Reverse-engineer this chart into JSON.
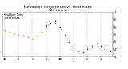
{
  "title": "Milwaukee Temperature vs. Heat Index (24 Hours)",
  "title_line1": "Milwaukee Temperature vs. Heat Index",
  "title_line2": "(24 Hours)",
  "title_fontsize": 3.2,
  "bg_color": "#ffffff",
  "grid_color": "#999999",
  "temp_color": "#cc0000",
  "heat_color": "#ff8800",
  "x_hours": [
    0,
    1,
    2,
    3,
    4,
    5,
    6,
    7,
    8,
    9,
    10,
    11,
    12,
    13,
    14,
    15,
    16,
    17,
    18,
    19,
    20,
    21,
    22,
    23
  ],
  "temp_values": [
    58,
    57,
    56,
    55,
    54,
    53,
    52,
    54,
    57,
    61,
    63,
    64,
    60,
    55,
    50,
    46,
    44,
    43,
    45,
    47,
    49,
    47,
    45,
    44
  ],
  "heat_values": [
    58,
    57,
    56,
    55,
    54,
    53,
    52,
    54,
    57,
    60,
    62,
    63,
    59,
    54,
    49,
    null,
    null,
    null,
    null,
    null,
    null,
    null,
    null,
    null
  ],
  "ylim": [
    40,
    70
  ],
  "y_ticks": [
    40,
    45,
    50,
    55,
    60,
    65,
    70
  ],
  "x_ticks": [
    0,
    3,
    6,
    9,
    12,
    15,
    18,
    21
  ],
  "x_tick_labels": [
    "12",
    "3",
    "6",
    "9",
    "12",
    "3",
    "6",
    "9"
  ],
  "legend_temp": "Outdoor Temp.",
  "legend_heat": "Heat Index",
  "marker_size": 1.0,
  "tick_fontsize": 2.8
}
